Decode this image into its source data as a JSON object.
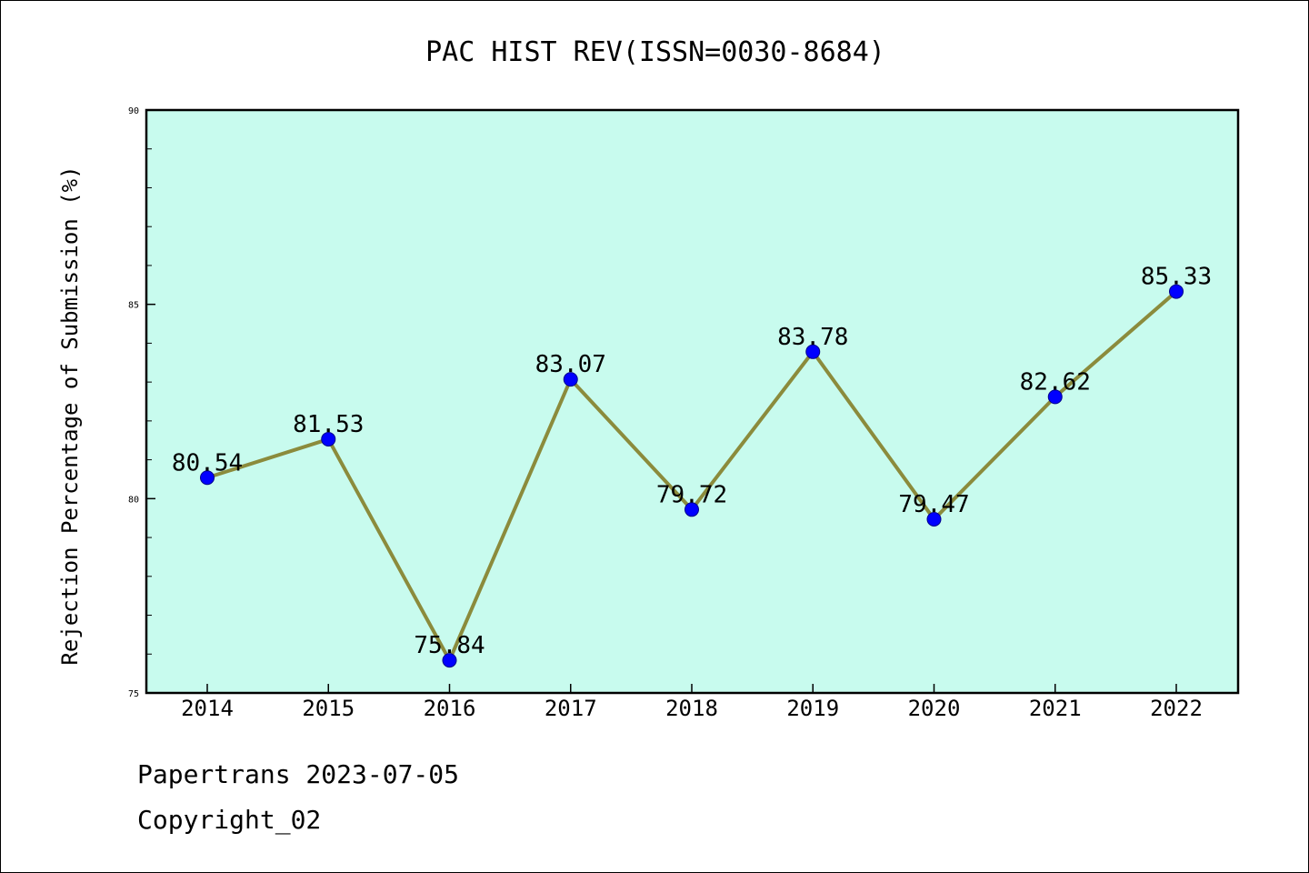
{
  "chart_data": {
    "type": "line",
    "title": "PAC HIST REV(ISSN=0030-8684)",
    "xlabel": "",
    "ylabel": "Rejection Percentage of Submission (%)",
    "categories": [
      "2014",
      "2015",
      "2016",
      "2017",
      "2018",
      "2019",
      "2020",
      "2021",
      "2022"
    ],
    "series": [
      {
        "name": "",
        "values": [
          80.54,
          81.53,
          75.84,
          83.07,
          79.72,
          83.78,
          79.47,
          82.62,
          85.33
        ],
        "data_labels": [
          "80.54",
          "81.53",
          "75.84",
          "83.07",
          "79.72",
          "83.78",
          "79.47",
          "82.62",
          "85.33"
        ]
      }
    ],
    "ylim": [
      75,
      90
    ],
    "yticks": [
      "75",
      "80",
      "85",
      "90"
    ],
    "y_minor_step": 1,
    "grid": false,
    "legend": "none",
    "colors": {
      "plot_background": "#c8fbee",
      "line": "#8b8b3c",
      "marker": "#0000ff",
      "marker_edge": "#00008b"
    }
  },
  "footer": {
    "line1": "Papertrans 2023-07-05",
    "line2": "Copyright_02"
  }
}
